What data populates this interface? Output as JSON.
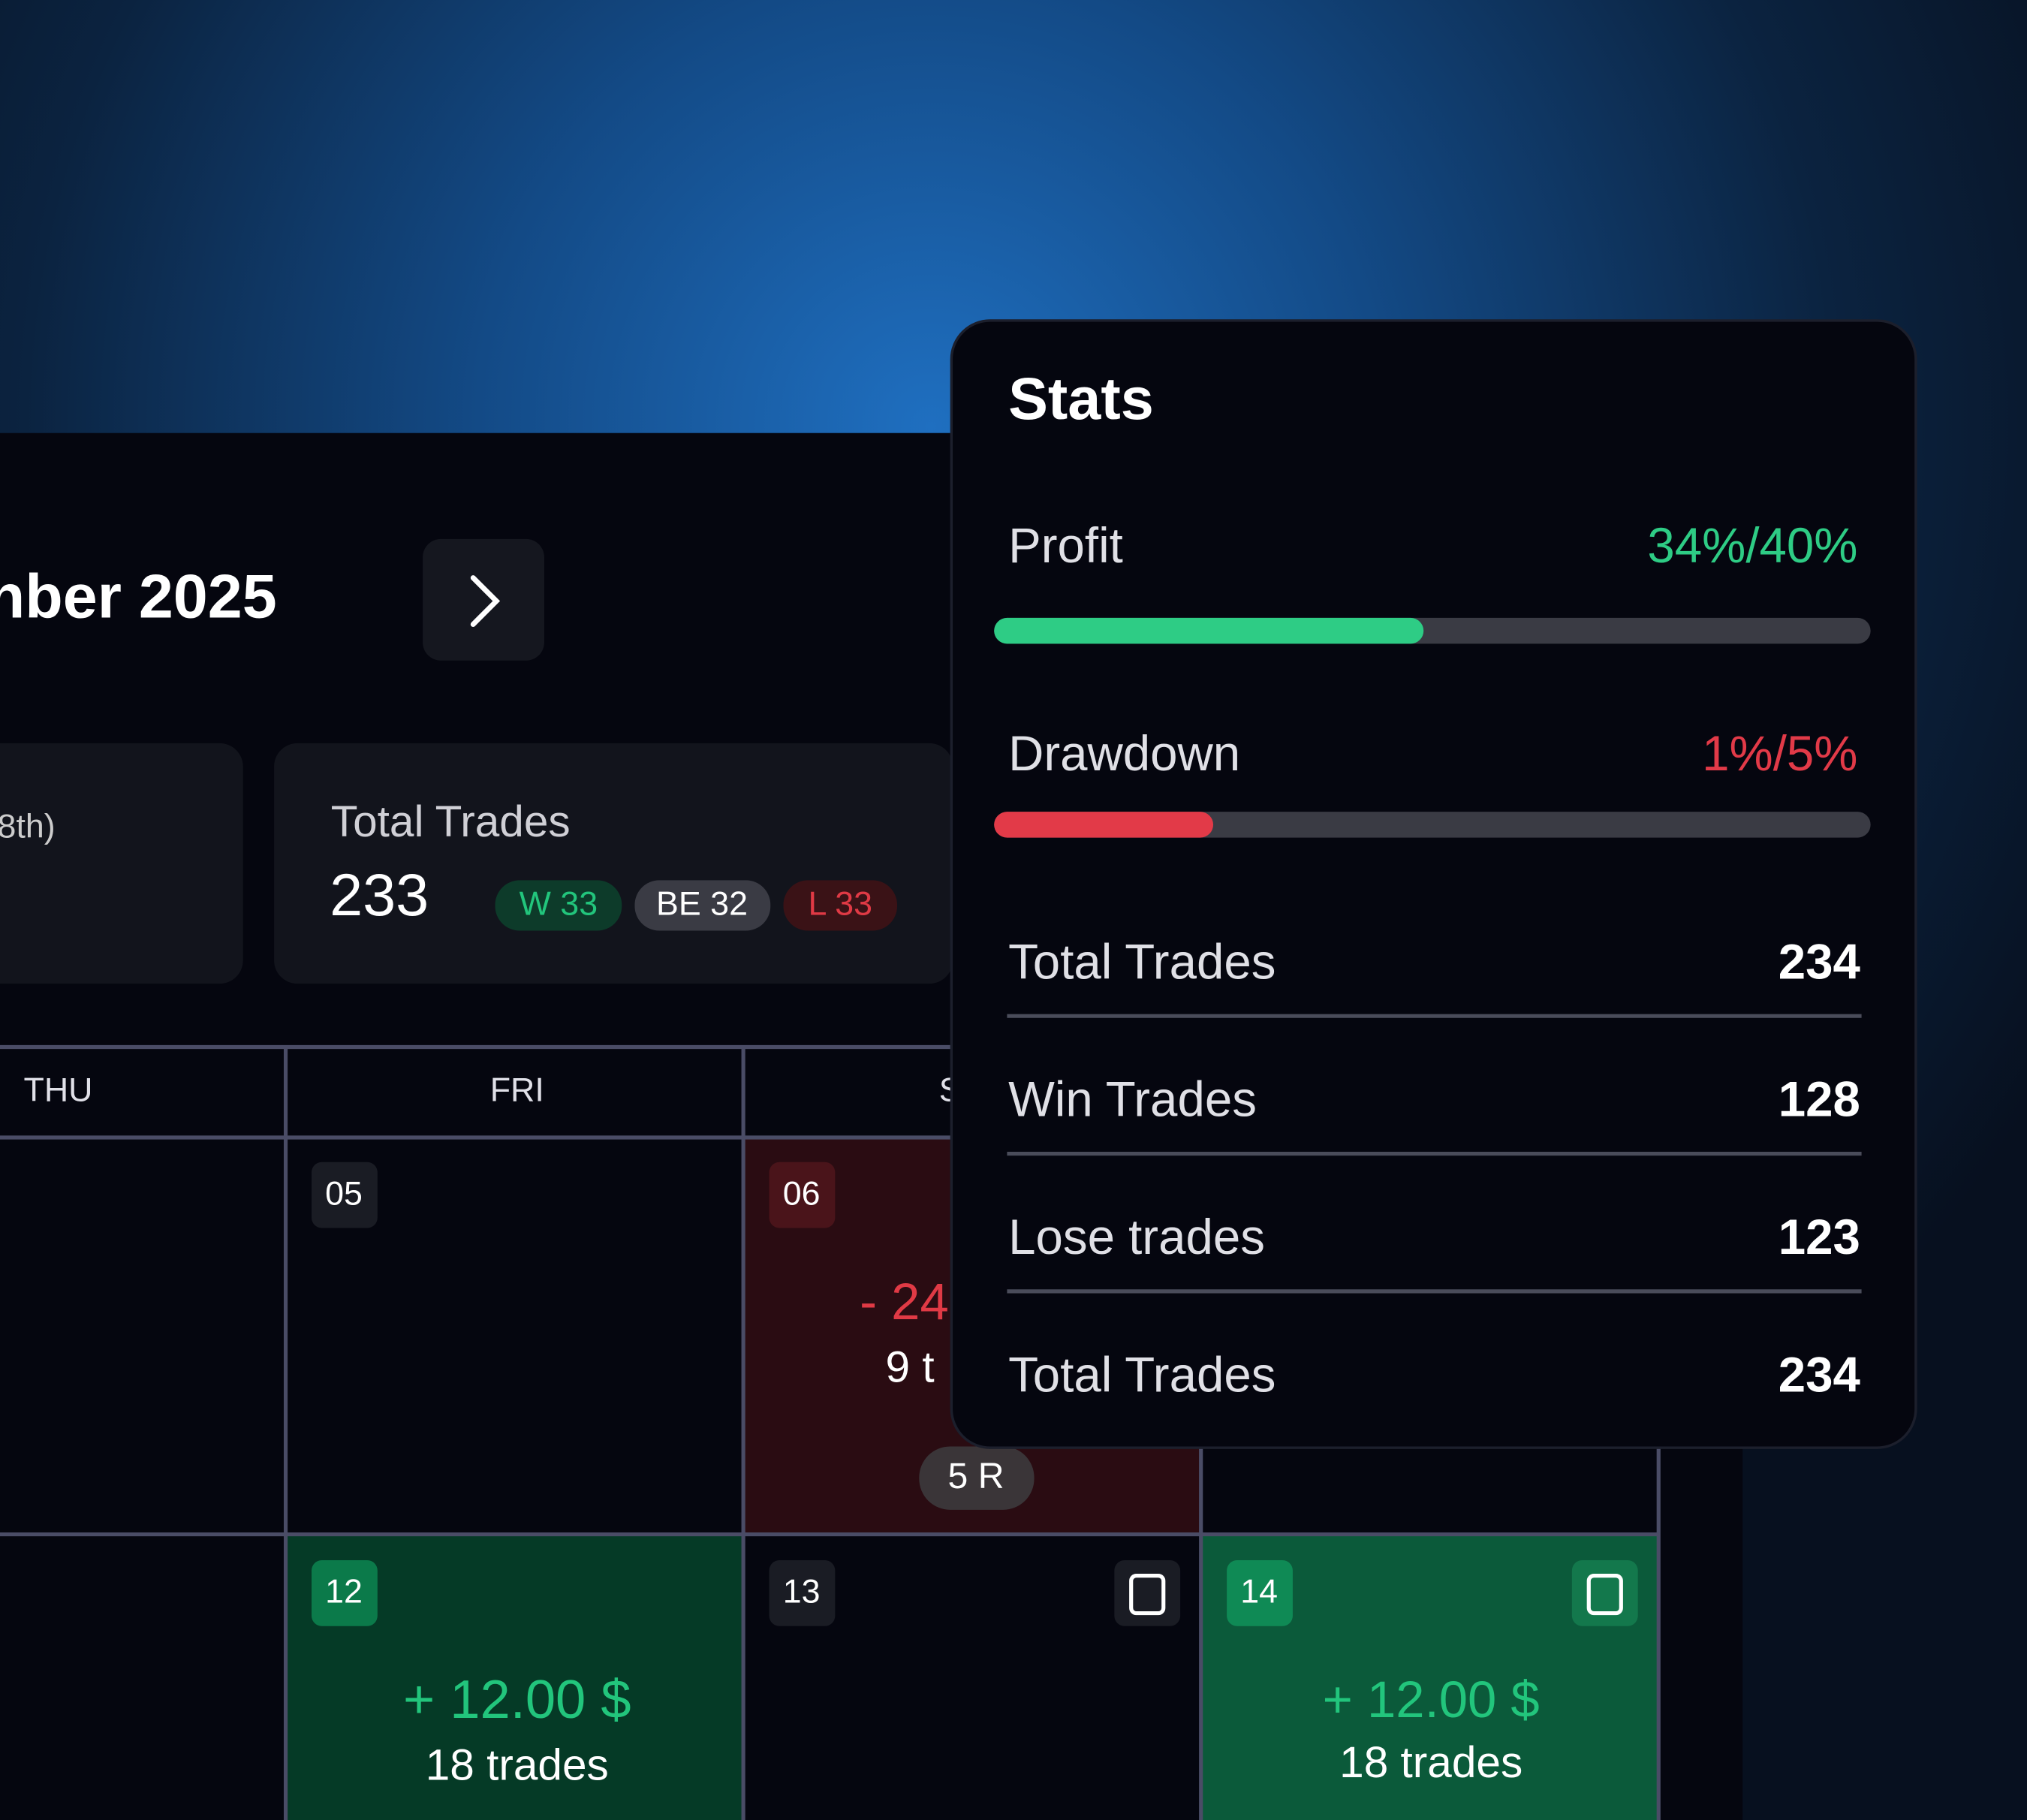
{
  "calendar": {
    "month_title": "nber 2025",
    "summary_partial": "8th)",
    "total_trades": {
      "label": "Total Trades",
      "value": "233",
      "badges": [
        "W 33",
        "BE 32",
        "L 33"
      ]
    },
    "weekdays": [
      "THU",
      "FRI",
      "S"
    ],
    "days": [
      {
        "date": "05"
      },
      {
        "date": "06",
        "pnl": "- 24",
        "trades": "9 t",
        "r": "5 R"
      },
      {
        "date": "12",
        "pnl": "+ 12.00 $",
        "trades": "18 trades"
      },
      {
        "date": "13"
      },
      {
        "date": "14",
        "pnl": "+ 12.00 $",
        "trades": "18 trades"
      }
    ]
  },
  "stats": {
    "title": "Stats",
    "progress": [
      {
        "label": "Profit",
        "text": "34%/40%",
        "bar_percent": 49
      },
      {
        "label": "Drawdown",
        "text": "1%/5%",
        "bar_percent": 25
      }
    ],
    "rows": [
      {
        "label": "Total Trades",
        "value": 234
      },
      {
        "label": "Win Trades",
        "value": 128
      },
      {
        "label": "Lose trades",
        "value": 123
      },
      {
        "label": "Total Trades",
        "value": 234
      }
    ]
  }
}
